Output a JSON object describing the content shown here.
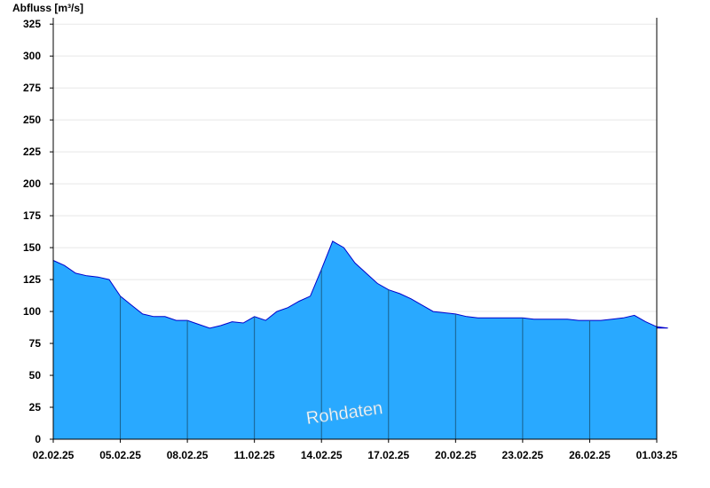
{
  "chart_data": {
    "type": "area",
    "ylabel": "Abfluss [m³/s]",
    "xlabel": "",
    "watermark": "Rohdaten",
    "colors": {
      "fill": "#29a9ff",
      "line": "#0000cc",
      "gridline": "#e8e8e8",
      "dayline": "#1a5f8a",
      "axis": "#000000"
    },
    "ylim": [
      0,
      330
    ],
    "yticks": [
      "0",
      "25",
      "50",
      "75",
      "100",
      "125",
      "150",
      "175",
      "200",
      "225",
      "250",
      "275",
      "300",
      "325"
    ],
    "xlim": [
      "02.02.25",
      "01.03.25"
    ],
    "xticks": [
      "02.02.25",
      "05.02.25",
      "08.02.25",
      "11.02.25",
      "14.02.25",
      "17.02.25",
      "20.02.25",
      "23.02.25",
      "26.02.25",
      "01.03.25"
    ],
    "grid": true,
    "x": [
      "02.02.25",
      "02.02.25 12:00",
      "03.02.25",
      "03.02.25 12:00",
      "04.02.25",
      "04.02.25 12:00",
      "05.02.25",
      "05.02.25 12:00",
      "06.02.25",
      "06.02.25 12:00",
      "07.02.25",
      "07.02.25 12:00",
      "08.02.25",
      "08.02.25 12:00",
      "09.02.25",
      "09.02.25 12:00",
      "10.02.25",
      "10.02.25 12:00",
      "11.02.25",
      "11.02.25 12:00",
      "12.02.25",
      "12.02.25 12:00",
      "13.02.25",
      "13.02.25 12:00",
      "14.02.25",
      "14.02.25 12:00",
      "15.02.25",
      "15.02.25 12:00",
      "16.02.25",
      "16.02.25 12:00",
      "17.02.25",
      "17.02.25 12:00",
      "18.02.25",
      "18.02.25 12:00",
      "19.02.25",
      "19.02.25 12:00",
      "20.02.25",
      "20.02.25 12:00",
      "21.02.25",
      "21.02.25 12:00",
      "22.02.25",
      "22.02.25 12:00",
      "23.02.25",
      "23.02.25 12:00",
      "24.02.25",
      "24.02.25 12:00",
      "25.02.25",
      "25.02.25 12:00",
      "26.02.25",
      "26.02.25 12:00",
      "27.02.25",
      "27.02.25 12:00",
      "28.02.25",
      "28.02.25 12:00",
      "01.03.25",
      "01.03.25 12:00"
    ],
    "values": [
      140,
      136,
      130,
      128,
      127,
      125,
      112,
      105,
      98,
      96,
      96,
      93,
      93,
      90,
      87,
      89,
      92,
      91,
      96,
      93,
      100,
      103,
      108,
      112,
      133,
      155,
      150,
      138,
      130,
      122,
      117,
      114,
      110,
      105,
      100,
      99,
      98,
      96,
      95,
      95,
      95,
      95,
      95,
      94,
      94,
      94,
      94,
      93,
      93,
      93,
      94,
      95,
      97,
      92,
      88,
      87
    ]
  }
}
